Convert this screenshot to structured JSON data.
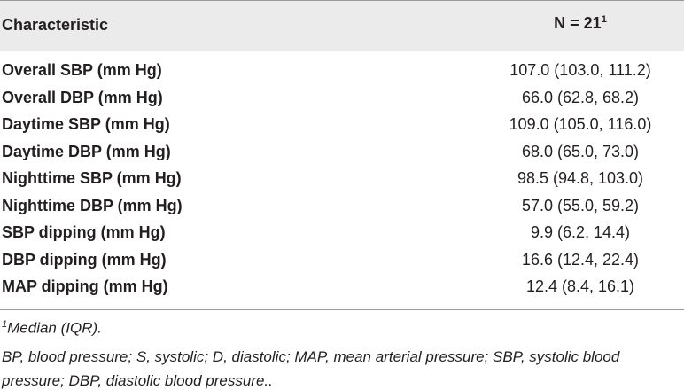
{
  "header": {
    "characteristic": "Characteristic",
    "n": "N = 21",
    "n_sup": "1"
  },
  "rows": [
    [
      "Overall SBP (mm Hg)",
      "107.0 (103.0, 111.2)"
    ],
    [
      "Overall DBP (mm Hg)",
      "66.0 (62.8, 68.2)"
    ],
    [
      "Daytime SBP (mm Hg)",
      "109.0 (105.0, 116.0)"
    ],
    [
      "Daytime DBP (mm Hg)",
      "68.0 (65.0, 73.0)"
    ],
    [
      "Nighttime SBP (mm Hg)",
      "98.5 (94.8, 103.0)"
    ],
    [
      "Nighttime DBP (mm Hg)",
      "57.0 (55.0, 59.2)"
    ],
    [
      "SBP dipping (mm Hg)",
      "9.9 (6.2, 14.4)"
    ],
    [
      "DBP dipping (mm Hg)",
      "16.6 (12.4, 22.4)"
    ],
    [
      "MAP dipping (mm Hg)",
      "12.4 (8.4, 16.1)"
    ]
  ],
  "footnote": {
    "marker": "1",
    "text": "Median (IQR)."
  },
  "abbreviations": "BP, blood pressure; S, systolic; D, diastolic; MAP, mean arterial pressure; SBP, systolic blood pressure; DBP, diastolic blood pressure.."
}
